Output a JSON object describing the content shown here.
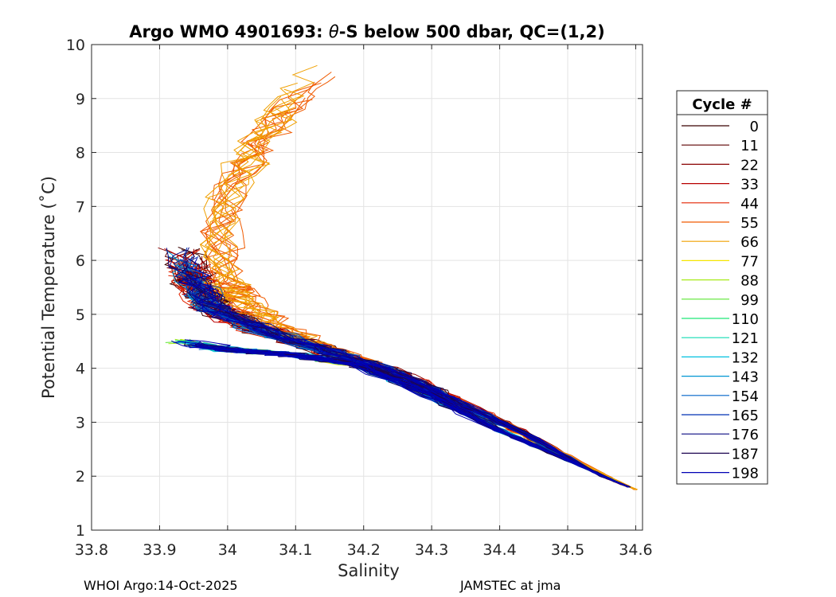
{
  "chart_data": {
    "type": "line",
    "title_prefix": "Argo WMO 4901693: ",
    "title_theta": "θ",
    "title_suffix": "-S below 500 dbar,  QC=(1,2)",
    "xlabel": "Salinity",
    "ylabel": "Potential Temperature (˚C)",
    "xlim": [
      33.8,
      34.61
    ],
    "ylim": [
      1,
      10
    ],
    "xticks": [
      33.8,
      33.9,
      34,
      34.1,
      34.2,
      34.3,
      34.4,
      34.5,
      34.6
    ],
    "xtick_labels": [
      "33.8",
      "33.9",
      "34",
      "34.1",
      "34.2",
      "34.3",
      "34.4",
      "34.5",
      "34.6"
    ],
    "yticks": [
      1,
      2,
      3,
      4,
      5,
      6,
      7,
      8,
      9,
      10
    ],
    "ytick_labels": [
      "1",
      "2",
      "3",
      "4",
      "5",
      "6",
      "7",
      "8",
      "9",
      "10"
    ],
    "grid": true,
    "legend": {
      "title": "Cycle #",
      "position": "right",
      "entries": [
        {
          "label": "0",
          "color": "#3a0000"
        },
        {
          "label": "11",
          "color": "#5e0000"
        },
        {
          "label": "22",
          "color": "#8a0000"
        },
        {
          "label": "33",
          "color": "#b80000"
        },
        {
          "label": "44",
          "color": "#e32400"
        },
        {
          "label": "55",
          "color": "#f05a00"
        },
        {
          "label": "66",
          "color": "#f0a000"
        },
        {
          "label": "77",
          "color": "#f5e600"
        },
        {
          "label": "88",
          "color": "#a8ea1a"
        },
        {
          "label": "99",
          "color": "#5ae632"
        },
        {
          "label": "110",
          "color": "#1ee678"
        },
        {
          "label": "121",
          "color": "#10dcb4"
        },
        {
          "label": "132",
          "color": "#00c0e0"
        },
        {
          "label": "143",
          "color": "#0096d2"
        },
        {
          "label": "154",
          "color": "#0064c8"
        },
        {
          "label": "165",
          "color": "#0032b4"
        },
        {
          "label": "176",
          "color": "#0a0a82"
        },
        {
          "label": "187",
          "color": "#1e0550"
        },
        {
          "label": "198",
          "color": "#0000b4"
        }
      ]
    },
    "series_shapes": {
      "warm_branch": [
        [
          34.14,
          9.6
        ],
        [
          34.1,
          9.0
        ],
        [
          34.05,
          8.2
        ],
        [
          34.01,
          7.4
        ],
        [
          33.99,
          6.5
        ],
        [
          34.0,
          5.6
        ],
        [
          34.02,
          5.3
        ],
        [
          34.07,
          4.8
        ],
        [
          34.15,
          4.35
        ],
        [
          34.25,
          3.9
        ],
        [
          34.35,
          3.3
        ],
        [
          34.45,
          2.7
        ],
        [
          34.55,
          2.05
        ],
        [
          34.6,
          1.75
        ]
      ],
      "fresh_branch": [
        [
          33.93,
          6.2
        ],
        [
          33.95,
          5.6
        ],
        [
          33.98,
          5.1
        ],
        [
          34.05,
          4.7
        ],
        [
          34.15,
          4.3
        ],
        [
          34.25,
          3.9
        ],
        [
          34.35,
          3.3
        ],
        [
          34.45,
          2.7
        ],
        [
          34.55,
          2.0
        ],
        [
          34.59,
          1.8
        ]
      ],
      "cold_branch": [
        [
          33.93,
          4.5
        ],
        [
          34.0,
          4.35
        ],
        [
          34.1,
          4.25
        ],
        [
          34.2,
          4.05
        ],
        [
          34.3,
          3.5
        ],
        [
          34.4,
          2.85
        ],
        [
          34.5,
          2.3
        ],
        [
          34.58,
          1.85
        ]
      ]
    },
    "footer_left": "WHOI Argo:14-Oct-2025",
    "footer_right": "JAMSTEC at jma"
  }
}
